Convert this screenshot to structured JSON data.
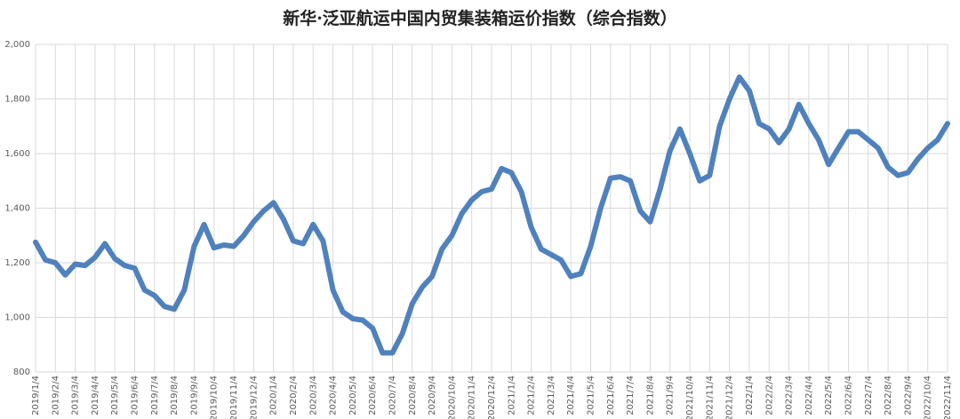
{
  "chart_data": {
    "type": "line",
    "title": "新华·泛亚航运中国内贸集装箱运价指数（综合指数）",
    "categories": [
      "2019/1/4",
      null,
      "2019/2/4",
      null,
      "2019/3/4",
      null,
      "2019/4/4",
      null,
      "2019/5/4",
      null,
      "2019/6/4",
      null,
      "2019/7/4",
      null,
      "2019/8/4",
      null,
      "2019/9/4",
      null,
      "2019/10/4",
      null,
      "2019/11/4",
      null,
      "2019/12/4",
      null,
      "2020/1/4",
      null,
      "2020/2/4",
      null,
      "2020/3/4",
      null,
      "2020/4/4",
      null,
      "2020/5/4",
      null,
      "2020/6/4",
      null,
      "2020/7/4",
      null,
      "2020/8/4",
      null,
      "2020/9/4",
      null,
      "2020/10/4",
      null,
      "2020/11/4",
      null,
      "2020/12/4",
      null,
      "2021/1/4",
      null,
      "2021/2/4",
      null,
      "2021/3/4",
      null,
      "2021/4/4",
      null,
      "2021/5/4",
      null,
      "2021/6/4",
      null,
      "2021/7/4",
      null,
      "2021/8/4",
      null,
      "2021/9/4",
      null,
      "2021/10/4",
      null,
      "2021/11/4",
      null,
      "2021/12/4",
      null,
      "2022/1/4",
      null,
      "2022/2/4",
      null,
      "2022/3/4",
      null,
      "2022/4/4",
      null,
      "2022/5/4",
      null,
      "2022/6/4",
      null,
      "2022/7/4",
      null,
      "2022/8/4",
      null,
      "2022/9/4",
      null,
      "2022/10/4",
      null,
      "2022/11/4"
    ],
    "series": [
      {
        "name": "综合指数",
        "color": "#4f81bd",
        "values": [
          1275,
          1210,
          1200,
          1155,
          1195,
          1190,
          1220,
          1270,
          1215,
          1190,
          1180,
          1100,
          1080,
          1040,
          1030,
          1100,
          1260,
          1340,
          1255,
          1265,
          1260,
          1300,
          1350,
          1390,
          1420,
          1360,
          1280,
          1270,
          1340,
          1280,
          1100,
          1020,
          995,
          990,
          960,
          870,
          870,
          940,
          1050,
          1110,
          1150,
          1250,
          1300,
          1380,
          1430,
          1460,
          1470,
          1545,
          1530,
          1460,
          1330,
          1250,
          1230,
          1210,
          1150,
          1160,
          1260,
          1400,
          1510,
          1515,
          1500,
          1390,
          1350,
          1470,
          1610,
          1690,
          1600,
          1500,
          1520,
          1700,
          1800,
          1880,
          1830,
          1710,
          1690,
          1640,
          1690,
          1780,
          1710,
          1650,
          1560,
          1620,
          1680,
          1680,
          1650,
          1620,
          1550,
          1520,
          1530,
          1580,
          1620,
          1650,
          1710
        ]
      }
    ],
    "ylim": [
      800,
      2000
    ],
    "yticks": [
      800,
      {
        "value": 1000,
        "label": "1,000"
      },
      {
        "value": 1200,
        "label": "1,200"
      },
      {
        "value": 1400,
        "label": "1,400"
      },
      {
        "value": 1600,
        "label": "1,600"
      },
      {
        "value": 1800,
        "label": "1,800"
      },
      {
        "value": 2000,
        "label": "2,000"
      }
    ],
    "grid": true
  }
}
